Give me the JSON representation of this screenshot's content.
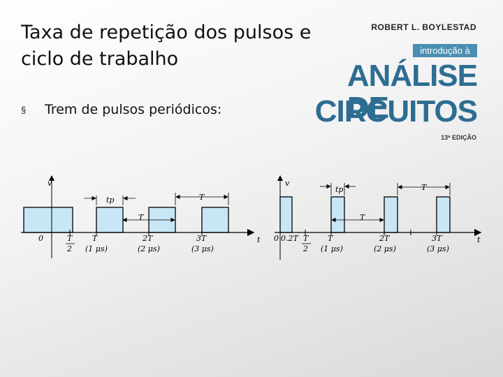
{
  "slide": {
    "title": "Taxa de repetição dos pulsos e ciclo de trabalho",
    "bullet_symbol": "§",
    "bullet_text": "Trem de pulsos periódicos:"
  },
  "logo": {
    "author": "ROBERT L. BOYLESTAD",
    "intro": "introdução à",
    "line1": "ANÁLISE DE",
    "line2": "CIRCUITOS",
    "edition": "13ª EDIÇÃO"
  },
  "left_plot": {
    "y_axis": "v",
    "x_axis": "t",
    "origin": "0",
    "pulse_width": "tp",
    "period": "T",
    "ticks": [
      "T",
      "2",
      "T",
      "2T",
      "3T"
    ],
    "time_labels": [
      "(1 μs)",
      "(2 μs)",
      "(3 μs)"
    ]
  },
  "right_plot": {
    "y_axis": "v",
    "x_axis": "t",
    "origin": "0",
    "duty_tick": "0.2T",
    "pulse_width": "tp",
    "period": "T",
    "ticks": [
      "T",
      "2",
      "T",
      "2T",
      "3T"
    ],
    "time_labels": [
      "(1 μs)",
      "(2 μs)",
      "(3 μs)"
    ]
  },
  "colors": {
    "pulse_fill": "#c8e6f5",
    "logo_blue": "#2d6d91",
    "intro_bg": "#4a8fb2"
  }
}
